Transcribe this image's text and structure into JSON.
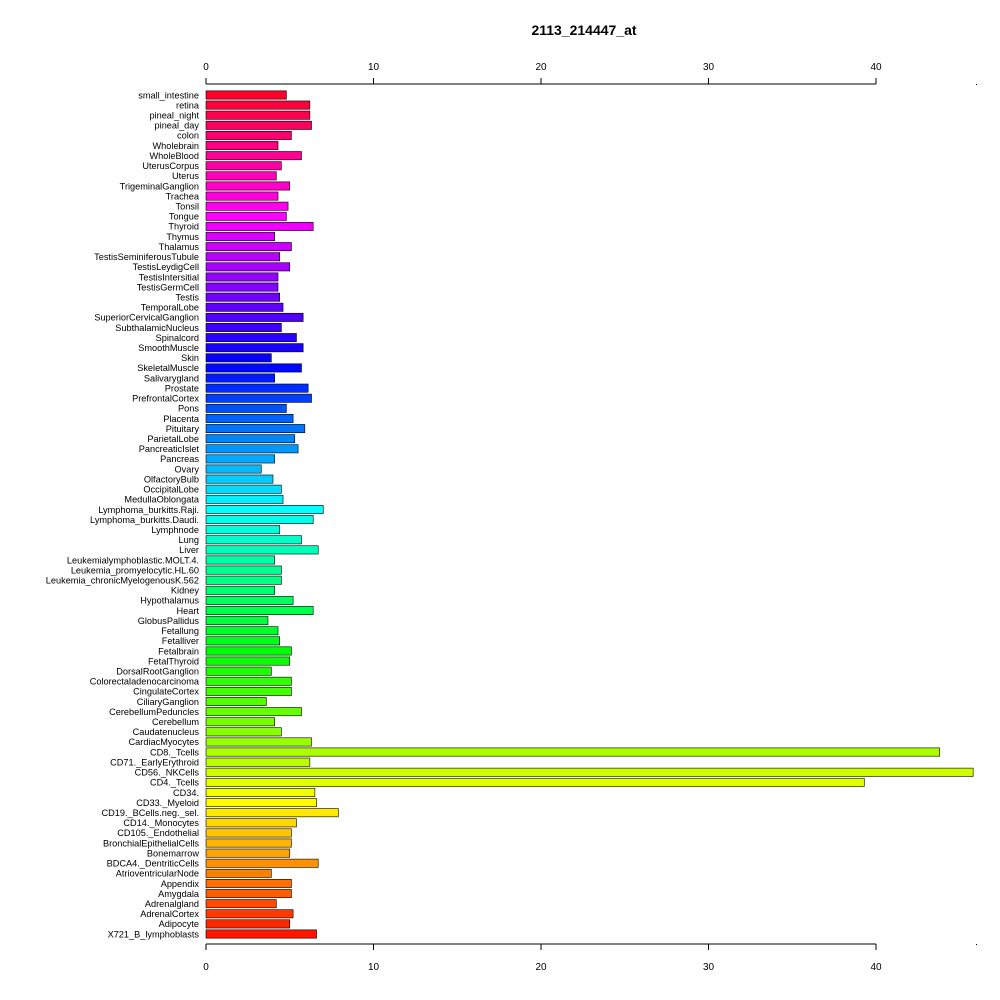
{
  "chart_data": {
    "type": "bar",
    "orientation": "horizontal",
    "title": "2113_214447_at",
    "xlabel": "",
    "ylabel": "",
    "xlim": [
      0,
      46
    ],
    "xticks": [
      0,
      10,
      20,
      30,
      40
    ],
    "grid": false,
    "categories": [
      "small_intestine",
      "retina",
      "pineal_night",
      "pineal_day",
      "colon",
      "Wholebrain",
      "WholeBlood",
      "UterusCorpus",
      "Uterus",
      "TrigeminalGanglion",
      "Trachea",
      "Tonsil",
      "Tongue",
      "Thyroid",
      "Thymus",
      "Thalamus",
      "TestisSeminiferousTubule",
      "TestisLeydigCell",
      "TestisIntersitial",
      "TestisGermCell",
      "Testis",
      "TemporalLobe",
      "SuperiorCervicalGanglion",
      "SubthalamicNucleus",
      "Spinalcord",
      "SmoothMuscle",
      "Skin",
      "SkeletalMuscle",
      "Salivarygland",
      "Prostate",
      "PrefrontalCortex",
      "Pons",
      "Placenta",
      "Pituitary",
      "ParietalLobe",
      "PancreaticIslet",
      "Pancreas",
      "Ovary",
      "OlfactoryBulb",
      "OccipitalLobe",
      "MedullaOblongata",
      "Lymphoma_burkitts.Raji.",
      "Lymphoma_burkitts.Daudi.",
      "Lymphnode",
      "Lung",
      "Liver",
      "Leukemialymphoblastic.MOLT.4.",
      "Leukemia_promyelocytic.HL.60",
      "Leukemia_chronicMyelogenousK.562",
      "Kidney",
      "Hypothalamus",
      "Heart",
      "GlobusPallidus",
      "Fetallung",
      "Fetalliver",
      "Fetalbrain",
      "FetalThyroid",
      "DorsalRootGanglion",
      "Colorectaladenocarcinoma",
      "CingulateCortex",
      "CiliaryGanglion",
      "CerebellumPeduncles",
      "Cerebellum",
      "Caudatenucleus",
      "CardiacMyocytes",
      "CD8._Tcells",
      "CD71._EarlyErythroid",
      "CD56._NKCells",
      "CD4._Tcells",
      "CD34.",
      "CD33._Myeloid",
      "CD19._BCells.neg._sel.",
      "CD14._Monocytes",
      "CD105._Endothelial",
      "BronchialEpithelialCells",
      "Bonemarrow",
      "BDCA4._DentriticCells",
      "AtrioventricularNode",
      "Appendix",
      "Amygdala",
      "Adrenalgland",
      "AdrenalCortex",
      "Adipocyte",
      "X721_B_lymphoblasts"
    ],
    "values": [
      4.8,
      6.2,
      6.2,
      6.3,
      5.1,
      4.3,
      5.7,
      4.5,
      4.2,
      5.0,
      4.3,
      4.9,
      4.8,
      6.4,
      4.1,
      5.1,
      4.4,
      5.0,
      4.3,
      4.3,
      4.4,
      4.6,
      5.8,
      4.5,
      5.4,
      5.8,
      3.9,
      5.7,
      4.1,
      6.1,
      6.3,
      4.8,
      5.2,
      5.9,
      5.3,
      5.5,
      4.1,
      3.3,
      4.0,
      4.5,
      4.6,
      7.0,
      6.4,
      4.4,
      5.7,
      6.7,
      4.1,
      4.5,
      4.5,
      4.1,
      5.2,
      6.4,
      3.7,
      4.3,
      4.4,
      5.1,
      5.0,
      3.9,
      5.1,
      5.1,
      3.6,
      5.7,
      4.1,
      4.5,
      6.3,
      43.8,
      6.2,
      45.8,
      39.3,
      6.5,
      6.6,
      7.9,
      5.4,
      5.1,
      5.1,
      5.0,
      6.7,
      3.9,
      5.1,
      5.1,
      4.2,
      5.2,
      5.0,
      6.6
    ]
  }
}
